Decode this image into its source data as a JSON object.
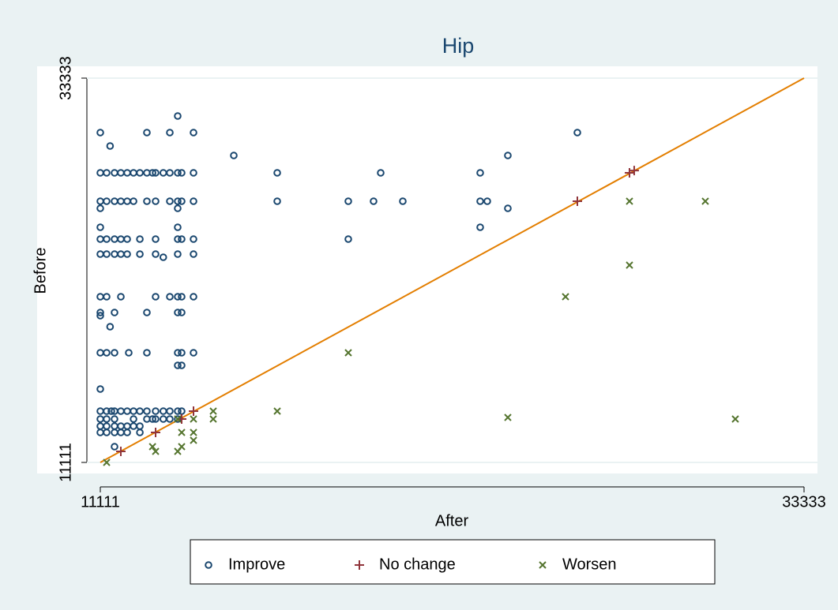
{
  "chart_data": {
    "type": "scatter",
    "title": "Hip",
    "x_label": "After",
    "y_label": "Before",
    "xlim": [
      11111,
      33333
    ],
    "ylim": [
      11111,
      33333
    ],
    "xticks": [
      11111,
      33333
    ],
    "yticks": [
      11111,
      33333
    ],
    "grid": true,
    "reference_line": {
      "color": "#e37e00"
    },
    "legend": "bottom",
    "series": [
      {
        "name": "Improve",
        "color": "#1a476f",
        "marker": "circle",
        "x": [
          11111,
          12582,
          13306,
          14054,
          26175,
          13555,
          11420,
          15326,
          23980,
          11111,
          11311,
          11560,
          11759,
          11960,
          12160,
          12360,
          12582,
          12760,
          12857,
          13100,
          13306,
          13555,
          13680,
          14054,
          16698,
          19965,
          23107,
          11111,
          11311,
          11560,
          11759,
          11960,
          12160,
          12582,
          12857,
          13306,
          13555,
          13680,
          14054,
          16698,
          18942,
          19740,
          20663,
          23107,
          23331,
          11111,
          13555,
          23980,
          11111,
          13555,
          23107,
          11111,
          11311,
          11560,
          11760,
          11960,
          12360,
          12857,
          13555,
          13680,
          14054,
          18942,
          11111,
          11311,
          11560,
          11760,
          11960,
          12360,
          12857,
          13555,
          14054,
          13100,
          11111,
          11311,
          11760,
          12857,
          13306,
          13555,
          13680,
          14054,
          11111,
          11560,
          12582,
          13555,
          13680,
          11111,
          11420,
          11111,
          11311,
          11560,
          12009,
          12582,
          13555,
          13680,
          14054,
          13555,
          13680,
          11111,
          11111,
          11311,
          11460,
          11560,
          11760,
          11960,
          12160,
          12360,
          12582,
          12857,
          13100,
          13306,
          13555,
          13680,
          11111,
          11311,
          11560,
          12160,
          12582,
          12760,
          12857,
          13100,
          13306,
          13555,
          11111,
          11311,
          11560,
          11760,
          11960,
          12160,
          12360,
          11111,
          11311,
          11560,
          11760,
          11960,
          12360,
          11560
        ],
        "y": [
          30184,
          30184,
          30184,
          30184,
          30184,
          31143,
          29409,
          28861,
          28861,
          27857,
          27857,
          27857,
          27857,
          27857,
          27857,
          27857,
          27857,
          27857,
          27857,
          27857,
          27857,
          27857,
          27857,
          27857,
          27857,
          27857,
          27857,
          26215,
          26215,
          26215,
          26215,
          26215,
          26215,
          26215,
          26215,
          26215,
          26215,
          26215,
          26215,
          26215,
          26215,
          26215,
          26215,
          26215,
          26215,
          25804,
          25804,
          25804,
          24709,
          24709,
          24709,
          24024,
          24024,
          24024,
          24024,
          24024,
          24024,
          24024,
          24024,
          24024,
          24024,
          24024,
          23157,
          23157,
          23157,
          23157,
          23157,
          23157,
          23157,
          23157,
          23157,
          22975,
          20693,
          20693,
          20693,
          20693,
          20693,
          20693,
          20693,
          20693,
          19781,
          19781,
          19781,
          19781,
          19781,
          19598,
          18959,
          17454,
          17454,
          17454,
          17454,
          17454,
          17454,
          17454,
          17454,
          16723,
          16723,
          15355,
          14077,
          14077,
          14077,
          14077,
          14077,
          14077,
          14077,
          14077,
          14077,
          14077,
          14077,
          14077,
          14077,
          14077,
          13621,
          13621,
          13621,
          13621,
          13621,
          13621,
          13621,
          13621,
          13621,
          13621,
          13210,
          13210,
          13210,
          13210,
          13210,
          13210,
          13210,
          12845,
          12845,
          12845,
          12845,
          12845,
          12845,
          12024
        ]
      },
      {
        "name": "No change",
        "color": "#90353b",
        "marker": "plus",
        "x": [
          11759,
          12857,
          13680,
          14054,
          26175,
          27821,
          27970
        ],
        "y": [
          11750,
          12845,
          13621,
          14077,
          26215,
          27857,
          27990
        ]
      },
      {
        "name": "Worsen",
        "color": "#55752f",
        "marker": "cross",
        "x": [
          11311,
          12760,
          12857,
          13555,
          13680,
          13680,
          14054,
          14054,
          14054,
          14677,
          14677,
          16698,
          18942,
          23980,
          25801,
          27821,
          27821,
          30215,
          31163,
          13555
        ],
        "y": [
          11111,
          12024,
          11750,
          11750,
          12024,
          12845,
          12845,
          13621,
          12389,
          14077,
          13621,
          14077,
          17454,
          13712,
          20693,
          26215,
          22519,
          26215,
          13621,
          13621
        ]
      }
    ]
  }
}
